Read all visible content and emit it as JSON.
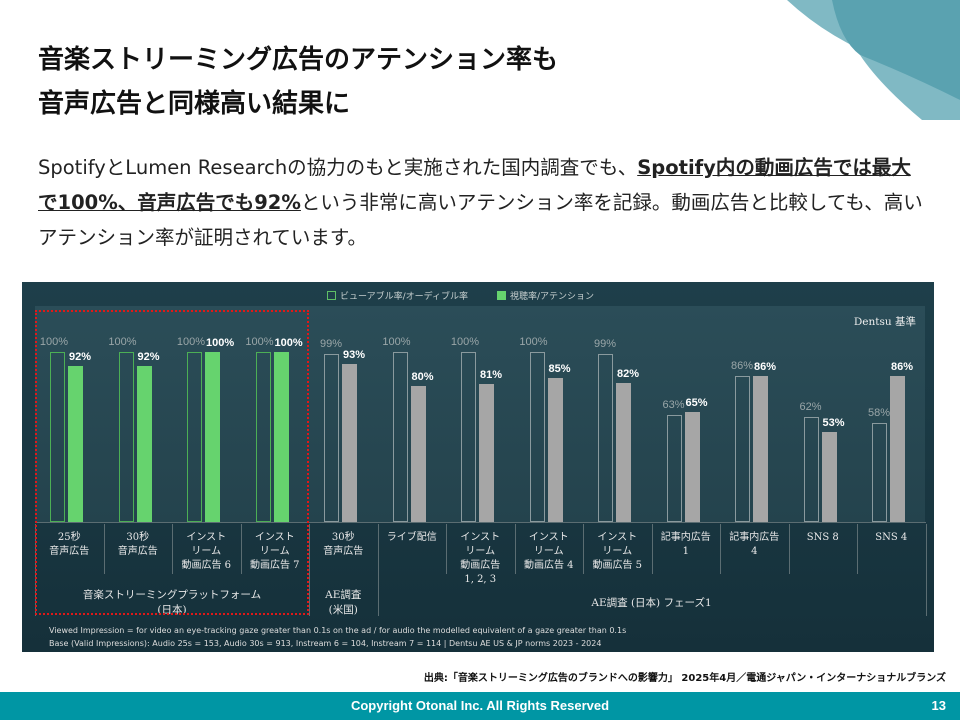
{
  "title": "音楽ストリーミング広告のアテンション率も\n音声広告と同様高い結果に",
  "lead": {
    "before": "SpotifyとLumen Researchの協力のもと実施された国内調査でも、",
    "highlight": "Spotify内の動画広告では最大で100%、音声広告でも92%",
    "after": "という非常に高いアテンション率を記録。動画広告と比較しても、高いアテンション率が証明されています。"
  },
  "colors": {
    "footer": "#0096a4",
    "green": "#66d36e",
    "gray": "#a6a6a6",
    "panel": "#1e3f4a"
  },
  "chart_data": {
    "type": "bar",
    "legend": [
      {
        "name": "ビューアブル率/オーディブル率",
        "style": "outline"
      },
      {
        "name": "視聴率/アテンション",
        "style": "filled"
      }
    ],
    "legend_position": "top",
    "badge": "Dentsu 基準",
    "categories": [
      "25秒\n音声広告",
      "30秒\n音声広告",
      "インスト\nリーム\n動画広告 6",
      "インスト\nリーム\n動画広告 7",
      "30秒\n音声広告",
      "ライブ配信",
      "インスト\nリーム\n動画広告\n1, 2, 3",
      "インスト\nリーム\n動画広告 4",
      "インスト\nリーム\n動画広告 5",
      "記事内広告\n1",
      "記事内広告\n4",
      "SNS 8",
      "SNS 4"
    ],
    "series": [
      {
        "name": "ビューアブル率/オーディブル率",
        "values": [
          100,
          100,
          100,
          100,
          99,
          100,
          100,
          100,
          99,
          63,
          86,
          62,
          58
        ]
      },
      {
        "name": "視聴率/アテンション",
        "values": [
          92,
          92,
          100,
          100,
          93,
          80,
          81,
          85,
          82,
          65,
          86,
          53,
          86
        ]
      }
    ],
    "highlighted_categories": [
      0,
      1,
      2,
      3
    ],
    "groups": [
      {
        "label": "音楽ストリーミングプラットフォーム\n(日本)",
        "span": [
          0,
          3
        ]
      },
      {
        "label": "AE調査\n(米国)",
        "span": [
          4,
          4
        ]
      },
      {
        "label": "AE調査 (日本) フェーズ1",
        "span": [
          5,
          12
        ]
      }
    ],
    "ylim": [
      0,
      100
    ],
    "notes": [
      "Viewed Impression = for video an eye-tracking gaze greater than 0.1s on the ad / for audio the modelled equivalent of a gaze greater than 0.1s",
      "Base (Valid Impressions): Audio 25s = 153, Audio 30s = 913, Instream 6 = 104, Instream 7 = 114 | Dentsu AE US & JP norms 2023 - 2024"
    ]
  },
  "source": "出典:「音楽ストリーミング広告のブランドへの影響力」 2025年4月／電通ジャパン・インターナショナルブランズ",
  "footer": {
    "copyright": "Copyright  Otonal  Inc. All Rights Reserved",
    "page": "13"
  }
}
